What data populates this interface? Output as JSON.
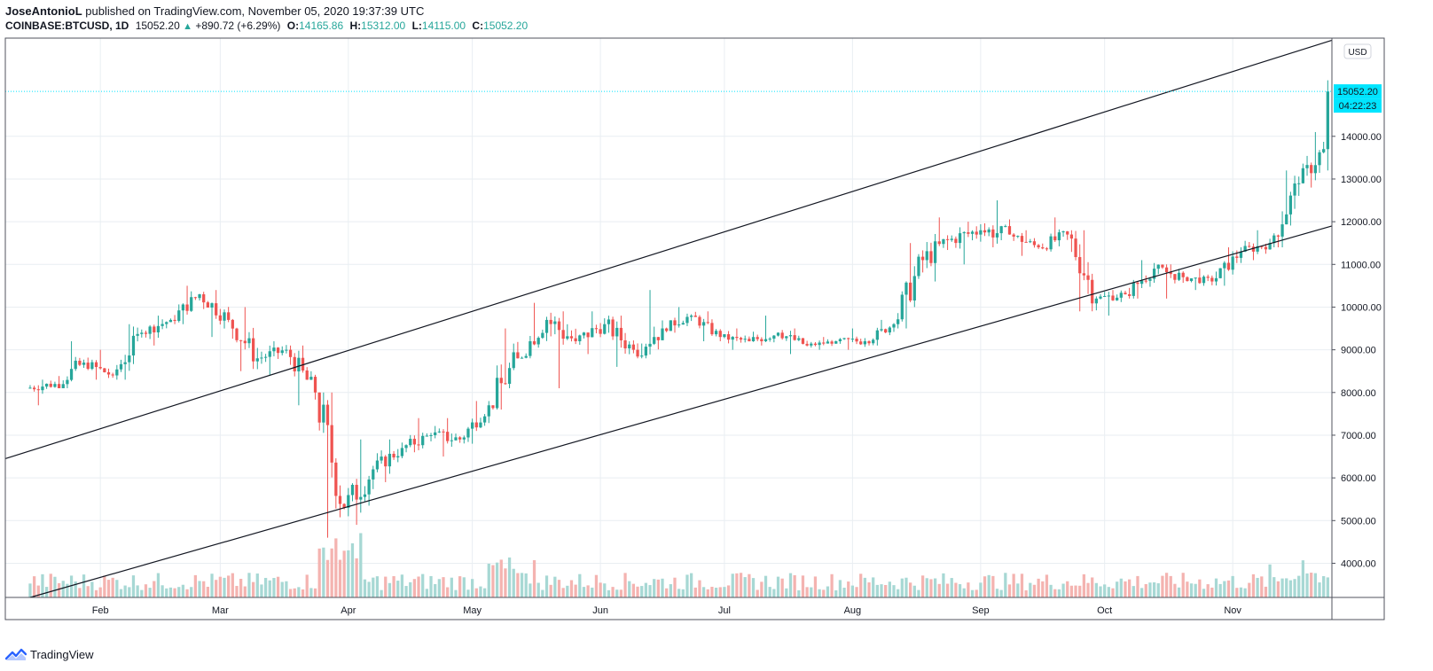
{
  "header": {
    "author": "JoseAntonioL",
    "published_text": "published on TradingView.com, November 05, 2020 19:37:39 UTC",
    "symbol": "COINBASE:BTCUSD, 1D",
    "last": "15052.20",
    "change": "+890.72 (+6.29%)",
    "o_label": "O:",
    "o_value": "14165.86",
    "h_label": "H:",
    "h_value": "15312.00",
    "l_label": "L:",
    "l_value": "14115.00",
    "c_label": "C:",
    "c_value": "15052.20"
  },
  "footer": {
    "brand": "TradingView"
  },
  "colors": {
    "up": "#26a69a",
    "down": "#ef5350",
    "up_vol": "#a7d8d4",
    "down_vol": "#f4b3b0",
    "price_line": "#00e5ff",
    "grid": "#e9eef2"
  },
  "chart_data": {
    "type": "candlestick",
    "currency_badge": "USD",
    "last_price_label": "15052.20",
    "countdown_label": "04:22:23",
    "y_ticks": [
      "4000.00",
      "5000.00",
      "6000.00",
      "7000.00",
      "8000.00",
      "9000.00",
      "10000.00",
      "11000.00",
      "12000.00",
      "13000.00",
      "14000.00"
    ],
    "ylim": [
      3200,
      16300
    ],
    "x_ticks": [
      "Feb",
      "Mar",
      "Apr",
      "May",
      "Jun",
      "Jul",
      "Aug",
      "Sep",
      "Oct",
      "Nov"
    ],
    "x_tick_days": [
      17,
      46,
      77,
      107,
      138,
      168,
      199,
      230,
      260,
      291
    ],
    "xlim": [
      -6,
      315
    ],
    "first_date": "2020-01-15",
    "trendlines": [
      {
        "name": "upper",
        "from": [
          -6,
          6450
        ],
        "to": [
          315,
          16250
        ]
      },
      {
        "name": "lower",
        "from": [
          0,
          3200
        ],
        "to": [
          315,
          11900
        ]
      }
    ],
    "weekly_candles": [
      {
        "day": 0,
        "o": 8100,
        "h": 8300,
        "l": 7700,
        "c": 8200
      },
      {
        "day": 7,
        "o": 8200,
        "h": 9200,
        "l": 8100,
        "c": 8700
      },
      {
        "day": 14,
        "o": 8700,
        "h": 9000,
        "l": 8300,
        "c": 8400
      },
      {
        "day": 21,
        "o": 8400,
        "h": 9600,
        "l": 8300,
        "c": 9400
      },
      {
        "day": 28,
        "o": 9400,
        "h": 9800,
        "l": 9100,
        "c": 9700
      },
      {
        "day": 35,
        "o": 9700,
        "h": 10500,
        "l": 9600,
        "c": 10300
      },
      {
        "day": 42,
        "o": 10300,
        "h": 10400,
        "l": 9300,
        "c": 9700
      },
      {
        "day": 49,
        "o": 9700,
        "h": 10000,
        "l": 8500,
        "c": 8800
      },
      {
        "day": 56,
        "o": 8800,
        "h": 9200,
        "l": 8400,
        "c": 9000
      },
      {
        "day": 63,
        "o": 9000,
        "h": 9100,
        "l": 7700,
        "c": 8000
      },
      {
        "day": 70,
        "o": 8000,
        "h": 8000,
        "l": 4600,
        "c": 5300
      },
      {
        "day": 77,
        "o": 5300,
        "h": 6900,
        "l": 4900,
        "c": 6200
      },
      {
        "day": 84,
        "o": 6200,
        "h": 6900,
        "l": 5900,
        "c": 6700
      },
      {
        "day": 91,
        "o": 6700,
        "h": 7400,
        "l": 6600,
        "c": 7000
      },
      {
        "day": 98,
        "o": 7000,
        "h": 7400,
        "l": 6500,
        "c": 6900
      },
      {
        "day": 105,
        "o": 6900,
        "h": 7800,
        "l": 6800,
        "c": 7700
      },
      {
        "day": 112,
        "o": 7700,
        "h": 9500,
        "l": 7600,
        "c": 8800
      },
      {
        "day": 119,
        "o": 8800,
        "h": 10100,
        "l": 8800,
        "c": 9700
      },
      {
        "day": 126,
        "o": 9700,
        "h": 9900,
        "l": 8100,
        "c": 9200
      },
      {
        "day": 133,
        "o": 9200,
        "h": 9900,
        "l": 8900,
        "c": 9600
      },
      {
        "day": 140,
        "o": 9600,
        "h": 9800,
        "l": 8600,
        "c": 9000
      },
      {
        "day": 147,
        "o": 9000,
        "h": 10400,
        "l": 8800,
        "c": 9500
      },
      {
        "day": 154,
        "o": 9500,
        "h": 10000,
        "l": 9400,
        "c": 9800
      },
      {
        "day": 161,
        "o": 9800,
        "h": 9900,
        "l": 9200,
        "c": 9300
      },
      {
        "day": 168,
        "o": 9300,
        "h": 9500,
        "l": 9000,
        "c": 9200
      },
      {
        "day": 175,
        "o": 9200,
        "h": 9800,
        "l": 9100,
        "c": 9400
      },
      {
        "day": 182,
        "o": 9400,
        "h": 9500,
        "l": 8900,
        "c": 9100
      },
      {
        "day": 189,
        "o": 9100,
        "h": 9300,
        "l": 9000,
        "c": 9200
      },
      {
        "day": 196,
        "o": 9200,
        "h": 9500,
        "l": 9000,
        "c": 9200
      },
      {
        "day": 203,
        "o": 9200,
        "h": 9700,
        "l": 9100,
        "c": 9600
      },
      {
        "day": 210,
        "o": 9600,
        "h": 11500,
        "l": 9500,
        "c": 11100
      },
      {
        "day": 217,
        "o": 11100,
        "h": 12100,
        "l": 10600,
        "c": 11600
      },
      {
        "day": 224,
        "o": 11600,
        "h": 12000,
        "l": 11000,
        "c": 11800
      },
      {
        "day": 231,
        "o": 11800,
        "h": 12500,
        "l": 11400,
        "c": 11700
      },
      {
        "day": 238,
        "o": 11700,
        "h": 11800,
        "l": 11200,
        "c": 11400
      },
      {
        "day": 245,
        "o": 11400,
        "h": 12100,
        "l": 11300,
        "c": 11700
      },
      {
        "day": 252,
        "o": 11700,
        "h": 11800,
        "l": 9900,
        "c": 10200
      },
      {
        "day": 259,
        "o": 10200,
        "h": 10400,
        "l": 9800,
        "c": 10300
      },
      {
        "day": 266,
        "o": 10300,
        "h": 11100,
        "l": 10200,
        "c": 10900
      },
      {
        "day": 273,
        "o": 10900,
        "h": 11000,
        "l": 10200,
        "c": 10700
      },
      {
        "day": 280,
        "o": 10700,
        "h": 10900,
        "l": 10400,
        "c": 10600
      },
      {
        "day": 287,
        "o": 10600,
        "h": 11400,
        "l": 10500,
        "c": 11300
      },
      {
        "day": 294,
        "o": 11300,
        "h": 11800,
        "l": 11100,
        "c": 11500
      },
      {
        "day": 301,
        "o": 11500,
        "h": 13200,
        "l": 11400,
        "c": 12900
      },
      {
        "day": 308,
        "o": 12900,
        "h": 14100,
        "l": 12800,
        "c": 13700
      },
      {
        "day": 314,
        "o": 13700,
        "h": 15312,
        "l": 13200,
        "c": 15052
      }
    ]
  }
}
